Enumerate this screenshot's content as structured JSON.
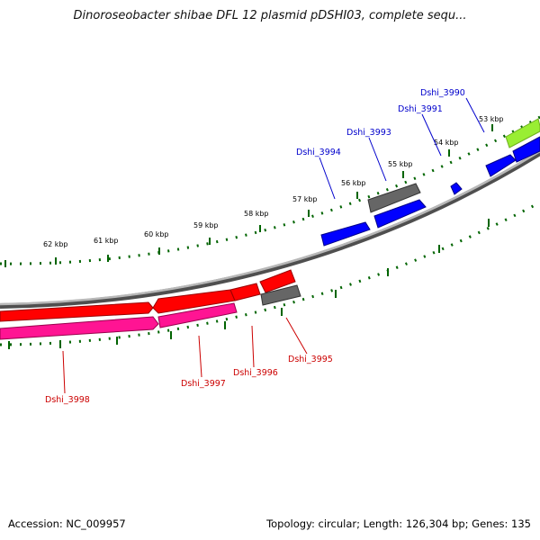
{
  "title": "Dinoroseobacter shibae DFL 12 plasmid pDSHI03, complete sequ...",
  "footer": {
    "accession": "Accession: NC_009957",
    "topology": "Topology: circular; Length: 126,304 bp; Genes: 135"
  },
  "scale_labels": [
    "53 kbp",
    "54 kbp",
    "55 kbp",
    "56 kbp",
    "57 kbp",
    "58 kbp",
    "59 kbp",
    "60 kbp",
    "61 kbp",
    "62 kbp"
  ],
  "genes_forward": [
    {
      "label": "Dshi_3990",
      "color": "#0000ff"
    },
    {
      "label": "Dshi_3991",
      "color": "#0000ff"
    },
    {
      "label": "Dshi_3993",
      "color": "#0000ff"
    },
    {
      "label": "Dshi_3994",
      "color": "#0000ff"
    }
  ],
  "genes_reverse": [
    {
      "label": "Dshi_3995",
      "color": "#cc0000"
    },
    {
      "label": "Dshi_3996",
      "color": "#cc0000"
    },
    {
      "label": "Dshi_3997",
      "color": "#cc0000"
    },
    {
      "label": "Dshi_3998",
      "color": "#cc0000"
    }
  ],
  "colors": {
    "forward_gene": "#0000ff",
    "reverse_gene": "#ff0000",
    "pink_gene": "#ff1493",
    "gray_gene": "#666666",
    "lime_gene": "#99ee33",
    "backbone": "#808080",
    "tick": "#006400"
  }
}
